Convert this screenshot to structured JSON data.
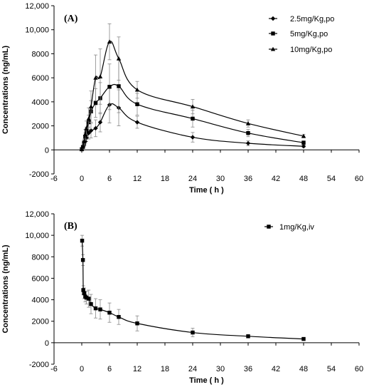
{
  "chart_data": [
    {
      "type": "line",
      "panel_label": "(A)",
      "xlabel": "Time ( h )",
      "ylabel": "Concentrations (ng/mL)",
      "xlim": [
        -6,
        60
      ],
      "ylim": [
        -2000,
        12000
      ],
      "x_ticks": [
        "-6",
        "0",
        "6",
        "12",
        "18",
        "24",
        "30",
        "36",
        "42",
        "48",
        "54",
        "60"
      ],
      "y_ticks": [
        "-2000",
        "0",
        "2000",
        "4000",
        "6000",
        "8000",
        "10,000",
        "12,000"
      ],
      "grid": false,
      "legend_position": "top-right",
      "x": [
        0,
        0.25,
        0.5,
        0.75,
        1,
        1.5,
        2,
        3,
        4,
        6,
        8,
        12,
        24,
        36,
        48
      ],
      "series": [
        {
          "name": "2.5mg/Kg,po",
          "marker": "diamond",
          "values": [
            50,
            200,
            400,
            700,
            1000,
            1400,
            1600,
            1800,
            2300,
            3750,
            3500,
            2300,
            1050,
            550,
            300
          ],
          "errors": [
            20,
            50,
            100,
            150,
            300,
            500,
            600,
            700,
            800,
            1500,
            1500,
            500,
            400,
            200,
            100
          ]
        },
        {
          "name": "5mg/Kg,po",
          "marker": "square",
          "values": [
            50,
            250,
            600,
            1100,
            1500,
            2300,
            3200,
            3900,
            4300,
            5250,
            5300,
            3800,
            2600,
            1400,
            600
          ],
          "errors": [
            30,
            100,
            200,
            300,
            400,
            600,
            900,
            1200,
            1300,
            1900,
            2200,
            900,
            700,
            300,
            150
          ]
        },
        {
          "name": "10mg/Kg,po",
          "marker": "triangle",
          "values": [
            50,
            300,
            700,
            1300,
            1800,
            2600,
            3600,
            6000,
            6100,
            9000,
            7600,
            5000,
            3600,
            2200,
            1150
          ],
          "errors": [
            30,
            100,
            200,
            400,
            600,
            900,
            1300,
            1900,
            2300,
            1500,
            1800,
            700,
            600,
            300,
            150
          ]
        }
      ]
    },
    {
      "type": "line",
      "panel_label": "(B)",
      "xlabel": "Time ( h )",
      "ylabel": "Concentrations (ng/mL)",
      "xlim": [
        -6,
        60
      ],
      "ylim": [
        -2000,
        12000
      ],
      "x_ticks": [
        "-6",
        "0",
        "6",
        "12",
        "18",
        "24",
        "30",
        "36",
        "42",
        "48",
        "54",
        "60"
      ],
      "y_ticks": [
        "-2000",
        "0",
        "2000",
        "4000",
        "6000",
        "8000",
        "10,000",
        "12,000"
      ],
      "grid": false,
      "legend_position": "top-right",
      "x": [
        0.083,
        0.25,
        0.33,
        0.5,
        0.75,
        1,
        1.5,
        2,
        3,
        4,
        6,
        8,
        12,
        24,
        36,
        48
      ],
      "series": [
        {
          "name": "1mg/Kg,iv",
          "marker": "square",
          "values": [
            9500,
            7700,
            4900,
            4600,
            4300,
            4200,
            4100,
            3600,
            3200,
            3100,
            2800,
            2400,
            1800,
            950,
            600,
            350
          ],
          "errors": [
            500,
            500,
            400,
            500,
            500,
            600,
            800,
            900,
            900,
            900,
            900,
            700,
            700,
            400,
            150,
            80
          ]
        }
      ]
    }
  ]
}
